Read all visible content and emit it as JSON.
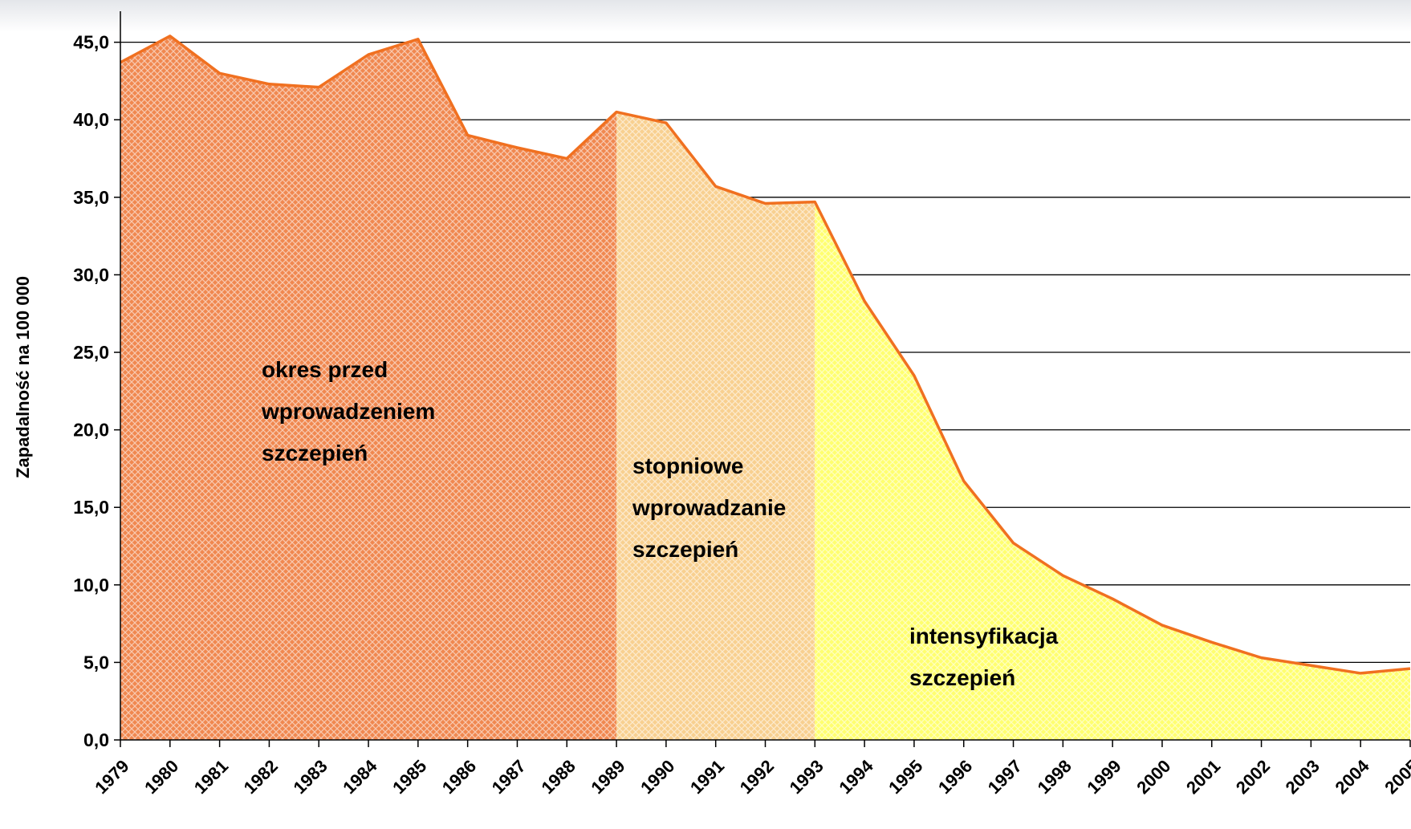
{
  "chart_data": {
    "type": "area",
    "y_label": "Zapadalność na 100 000",
    "categories": [
      "1979",
      "1980",
      "1981",
      "1982",
      "1983",
      "1984",
      "1985",
      "1986",
      "1987",
      "1988",
      "1989",
      "1990",
      "1991",
      "1992",
      "1993",
      "1994",
      "1995",
      "1996",
      "1997",
      "1998",
      "1999",
      "2000",
      "2001",
      "2002",
      "2003",
      "2004",
      "2005"
    ],
    "series": [
      {
        "color": "#f07020",
        "values": [
          43.7,
          45.4,
          43.0,
          42.3,
          42.1,
          44.2,
          45.2,
          39.0,
          38.2,
          37.5,
          40.5,
          39.8,
          35.7,
          34.6,
          34.7,
          28.3,
          23.5,
          16.7,
          12.7,
          10.6,
          9.1,
          7.4,
          6.3,
          5.3,
          4.8,
          4.3,
          4.6
        ]
      }
    ],
    "ylim": [
      0,
      47
    ],
    "yticks": [
      {
        "value": 0,
        "label": "0,0"
      },
      {
        "value": 5,
        "label": "5,0"
      },
      {
        "value": 10,
        "label": "10,0"
      },
      {
        "value": 15,
        "label": "15,0"
      },
      {
        "value": 20,
        "label": "20,0"
      },
      {
        "value": 25,
        "label": "25,0"
      },
      {
        "value": 30,
        "label": "30,0"
      },
      {
        "value": 35,
        "label": "35,0"
      },
      {
        "value": 40,
        "label": "40,0"
      },
      {
        "value": 45,
        "label": "45,0"
      }
    ],
    "grid": true,
    "periods": [
      {
        "from": "1979",
        "to": "1989",
        "color": "#f08850",
        "label": [
          "okres przed",
          "wprowadzeniem",
          "szczepień"
        ]
      },
      {
        "from": "1989",
        "to": "1993",
        "color": "#f8d090",
        "label": [
          "stopniowe",
          "wprowadzanie",
          "szczepień"
        ]
      },
      {
        "from": "1993",
        "to": "2005",
        "color": "#ffff70",
        "label": [
          "intensyfikacja",
          "szczepień"
        ]
      }
    ]
  }
}
